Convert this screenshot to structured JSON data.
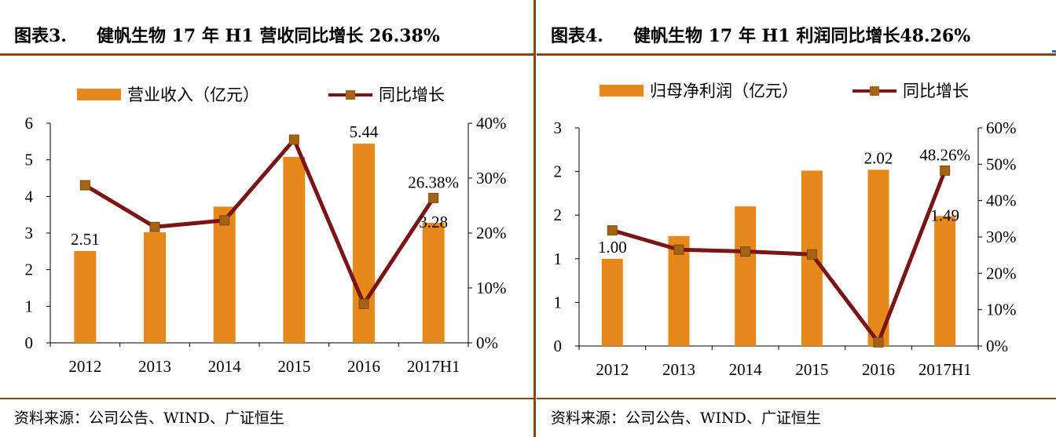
{
  "colors": {
    "bar": "#e6891a",
    "line": "#7a1515",
    "marker": "#a86214",
    "rule": "#8b4513"
  },
  "charts": [
    {
      "id": "left",
      "figure_label": "图表3.",
      "figure_title": "健帆生物 17 年 H1 营收同比增长 26.38%",
      "source": "资料来源：公司公告、WIND、广证恒生",
      "legend": {
        "bar": "营业收入（亿元）",
        "line": "同比增长"
      }
    },
    {
      "id": "right",
      "figure_label": "图表4.",
      "figure_title": "健帆生物 17 年 H1 利润同比增长48.26%",
      "source": "资料来源：公司公告、WIND、广证恒生",
      "legend": {
        "bar": "归母净利润（亿元）",
        "line": "同比增长"
      }
    }
  ],
  "chart_data": [
    {
      "type": "bar+line",
      "title": "健帆生物 17 年 H1 营收同比增长 26.38%",
      "categories": [
        "2012",
        "2013",
        "2014",
        "2015",
        "2016",
        "2017H1"
      ],
      "series": [
        {
          "name": "营业收入（亿元）",
          "type": "bar",
          "axis": "left",
          "values": [
            2.51,
            3.02,
            3.72,
            5.08,
            5.44,
            3.28
          ]
        },
        {
          "name": "同比增长",
          "type": "line",
          "axis": "right",
          "values": [
            28.7,
            21.1,
            22.3,
            37.0,
            7.1,
            26.38
          ]
        }
      ],
      "left_axis": {
        "min": 0,
        "max": 6,
        "ticks": [
          "0",
          "1",
          "2",
          "3",
          "4",
          "5",
          "6"
        ]
      },
      "right_axis": {
        "min": 0,
        "max": 40,
        "ticks": [
          "0%",
          "10%",
          "20%",
          "30%",
          "40%"
        ]
      },
      "bar_labels": [
        {
          "index": 0,
          "text": "2.51"
        },
        {
          "index": 4,
          "text": "5.44"
        },
        {
          "index": 5,
          "text": "3.28"
        }
      ],
      "line_labels": [
        {
          "index": 5,
          "text": "26.38%"
        }
      ],
      "legend_position": "top"
    },
    {
      "type": "bar+line",
      "title": "健帆生物 17 年 H1 利润同比增长48.26%",
      "categories": [
        "2012",
        "2013",
        "2014",
        "2015",
        "2016",
        "2017H1"
      ],
      "series": [
        {
          "name": "归母净利润（亿元）",
          "type": "bar",
          "axis": "left",
          "values": [
            1.0,
            1.26,
            1.6,
            2.01,
            2.02,
            1.49
          ]
        },
        {
          "name": "同比增长",
          "type": "line",
          "axis": "right",
          "values": [
            31.8,
            26.5,
            26.0,
            25.2,
            1.0,
            48.26
          ]
        }
      ],
      "left_axis": {
        "min": 0,
        "max": 2.5,
        "ticks": [
          "0",
          "1",
          "1",
          "2",
          "2",
          "3"
        ]
      },
      "right_axis": {
        "min": 0,
        "max": 60,
        "ticks": [
          "0%",
          "10%",
          "20%",
          "30%",
          "40%",
          "50%",
          "60%"
        ]
      },
      "bar_labels": [
        {
          "index": 0,
          "text": "1.00"
        },
        {
          "index": 4,
          "text": "2.02"
        },
        {
          "index": 5,
          "text": "1.49"
        }
      ],
      "line_labels": [
        {
          "index": 5,
          "text": "48.26%"
        }
      ],
      "legend_position": "top"
    }
  ]
}
